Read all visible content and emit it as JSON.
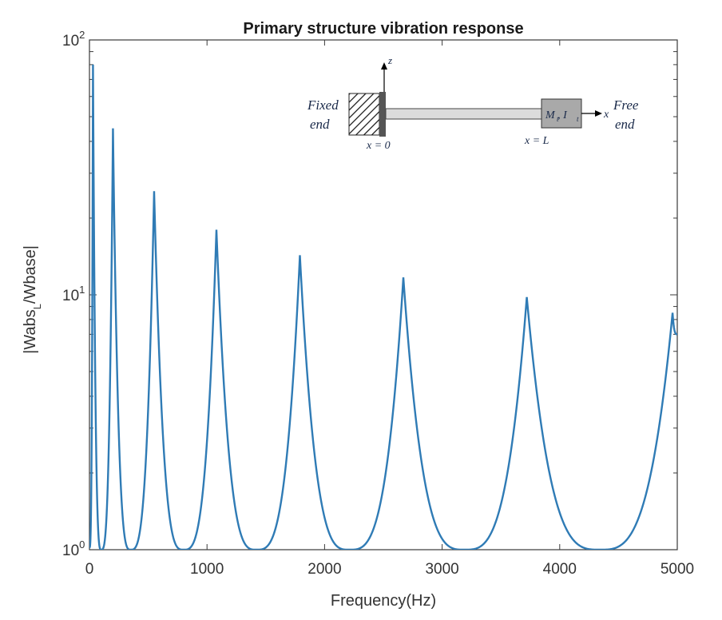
{
  "chart_data": {
    "type": "line",
    "title": "Primary structure vibration response",
    "xlabel": "Frequency(Hz)",
    "ylabel": {
      "prefix": "|Wabs",
      "subscript": "L",
      "suffix": "/Wbase|"
    },
    "xlim": [
      0,
      5000
    ],
    "ylim": [
      1,
      100
    ],
    "yscale": "log",
    "grid": false,
    "x_ticks": [
      "0",
      "1000",
      "2000",
      "3000",
      "4000",
      "5000"
    ],
    "y_ticks": [
      {
        "base": "10",
        "exp": "0"
      },
      {
        "base": "10",
        "exp": "1"
      },
      {
        "base": "10",
        "exp": "2"
      }
    ],
    "series": [
      {
        "color": "#2f7bb5",
        "peaks": [
          {
            "freq": 30,
            "amp": 80
          },
          {
            "freq": 200,
            "amp": 45
          },
          {
            "freq": 550,
            "amp": 25.5
          },
          {
            "freq": 1080,
            "amp": 18
          },
          {
            "freq": 1790,
            "amp": 14.3
          },
          {
            "freq": 2670,
            "amp": 11.7
          },
          {
            "freq": 3720,
            "amp": 9.8
          },
          {
            "freq": 4960,
            "amp": 8.5
          }
        ],
        "troughs": [
          {
            "freq": 0,
            "amp": 1.02
          },
          {
            "freq": 100,
            "amp": 1.0
          },
          {
            "freq": 350,
            "amp": 1.0
          },
          {
            "freq": 800,
            "amp": 1.0
          },
          {
            "freq": 1420,
            "amp": 1.0
          },
          {
            "freq": 2210,
            "amp": 1.0
          },
          {
            "freq": 3190,
            "amp": 1.0
          },
          {
            "freq": 4340,
            "amp": 1.0
          },
          {
            "freq": 5000,
            "amp": 7.0
          }
        ]
      }
    ],
    "inset": {
      "fixed_label_1": "Fixed",
      "fixed_label_2": "end",
      "free_label_1": "Free",
      "free_label_2": "end",
      "z_axis": "z",
      "x_axis": "x",
      "start_label": "x = 0",
      "end_label": "x = L",
      "mass_label": "M , I"
    }
  }
}
